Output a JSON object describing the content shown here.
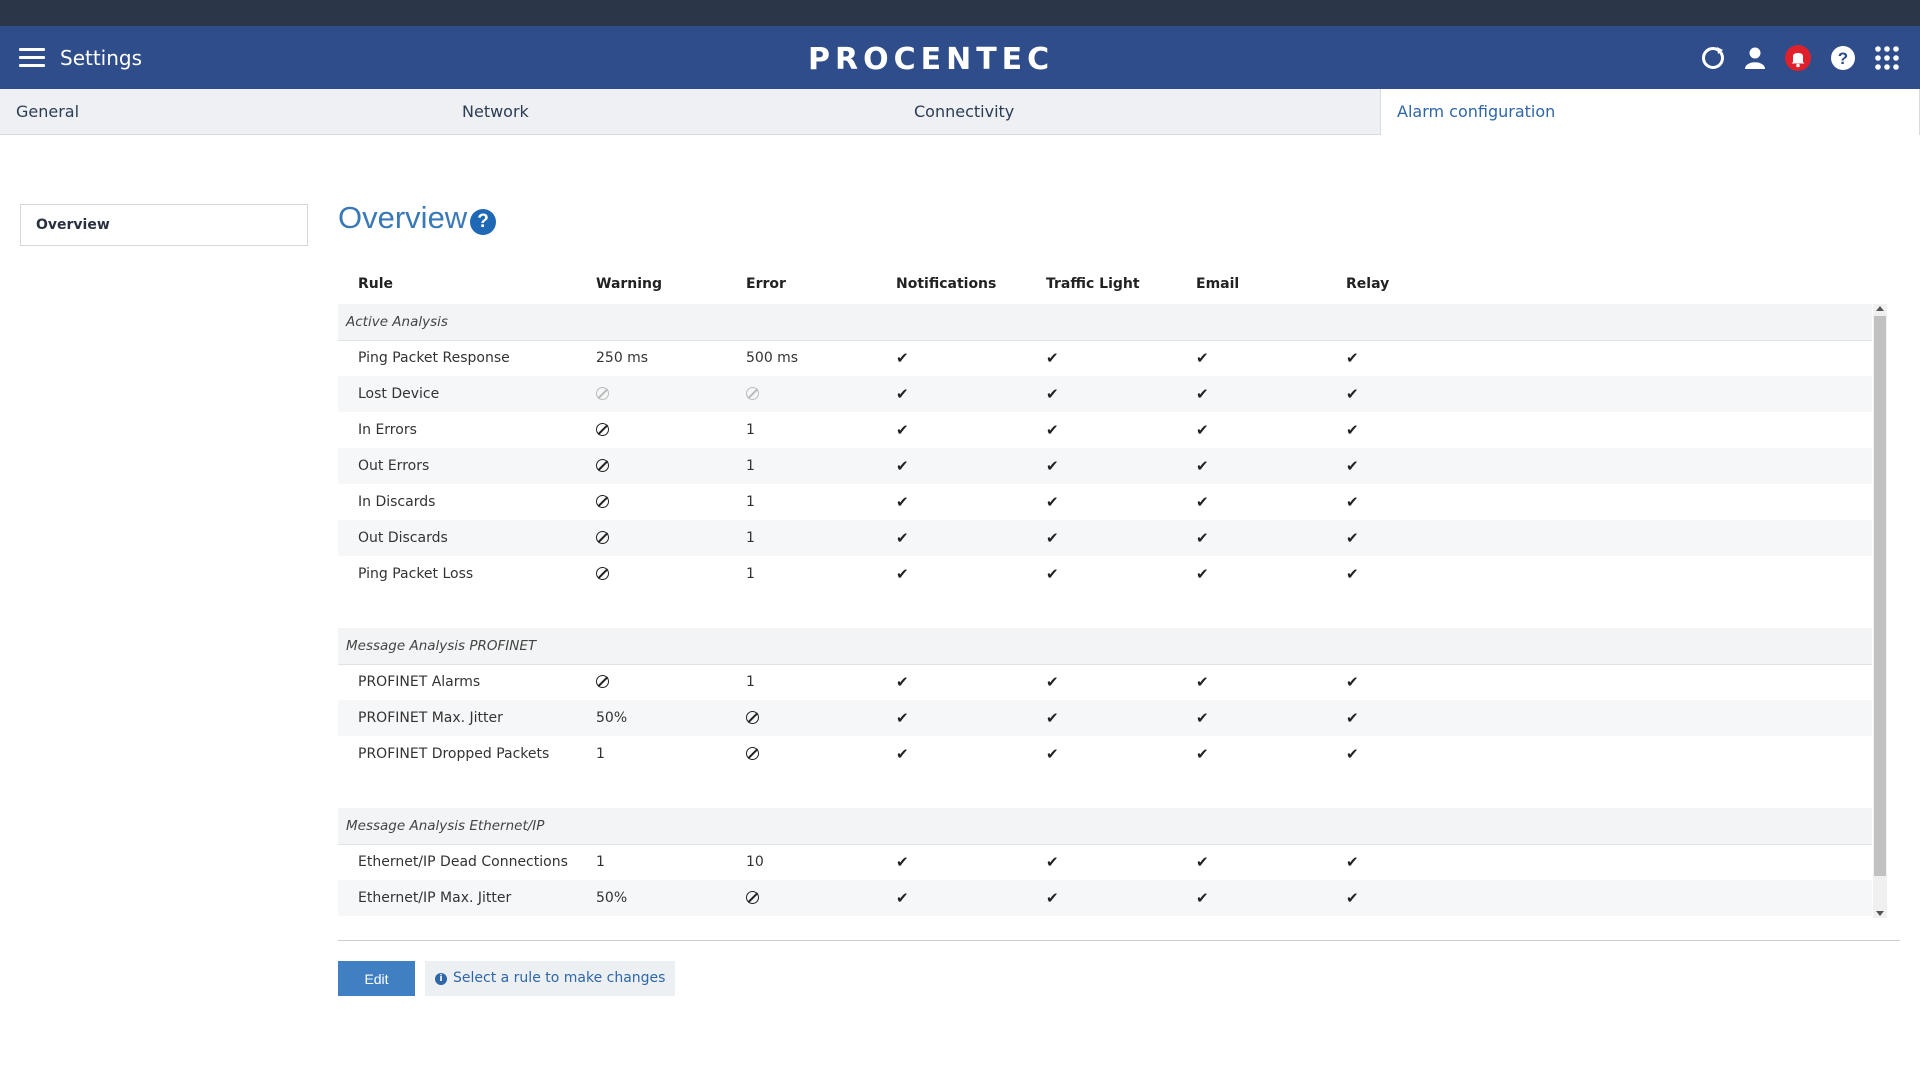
{
  "header": {
    "title": "Settings",
    "logo": "PROCENTEC",
    "icons": [
      "refresh-icon",
      "user-icon",
      "bell-icon",
      "help-icon",
      "apps-icon"
    ]
  },
  "tabs": [
    {
      "label": "General"
    },
    {
      "label": "Network"
    },
    {
      "label": "Connectivity"
    },
    {
      "label": "Alarm configuration"
    }
  ],
  "sidebar": {
    "items": [
      {
        "label": "Overview"
      }
    ]
  },
  "main": {
    "title": "Overview",
    "help": "?",
    "columns": [
      "Rule",
      "Warning",
      "Error",
      "Notifications",
      "Traffic Light",
      "Email",
      "Relay"
    ],
    "groups": [
      {
        "name": "Active Analysis",
        "rows": [
          {
            "rule": "Ping Packet Response",
            "warning": "250 ms",
            "error": "500 ms"
          },
          {
            "rule": "Lost Device",
            "warning": "disabled-muted",
            "error": "disabled-muted"
          },
          {
            "rule": "In Errors",
            "warning": "disabled",
            "error": "1"
          },
          {
            "rule": "Out Errors",
            "warning": "disabled",
            "error": "1"
          },
          {
            "rule": "In Discards",
            "warning": "disabled",
            "error": "1"
          },
          {
            "rule": "Out Discards",
            "warning": "disabled",
            "error": "1"
          },
          {
            "rule": "Ping Packet Loss",
            "warning": "disabled",
            "error": "1"
          }
        ]
      },
      {
        "name": "Message Analysis PROFINET",
        "rows": [
          {
            "rule": "PROFINET Alarms",
            "warning": "disabled",
            "error": "1"
          },
          {
            "rule": "PROFINET Max. Jitter",
            "warning": "50%",
            "error": "disabled"
          },
          {
            "rule": "PROFINET Dropped Packets",
            "warning": "1",
            "error": "disabled"
          }
        ]
      },
      {
        "name": "Message Analysis Ethernet/IP",
        "rows": [
          {
            "rule": "Ethernet/IP Dead Connections",
            "warning": "1",
            "error": "10"
          },
          {
            "rule": "Ethernet/IP Max. Jitter",
            "warning": "50%",
            "error": "disabled"
          }
        ]
      }
    ]
  },
  "footer": {
    "edit_label": "Edit",
    "hint": "Select a rule to make changes"
  },
  "colors": {
    "header_bg": "#2e4d8a",
    "top_strip": "#2c3649",
    "accent": "#3a79b8",
    "alert": "#e0202a"
  }
}
